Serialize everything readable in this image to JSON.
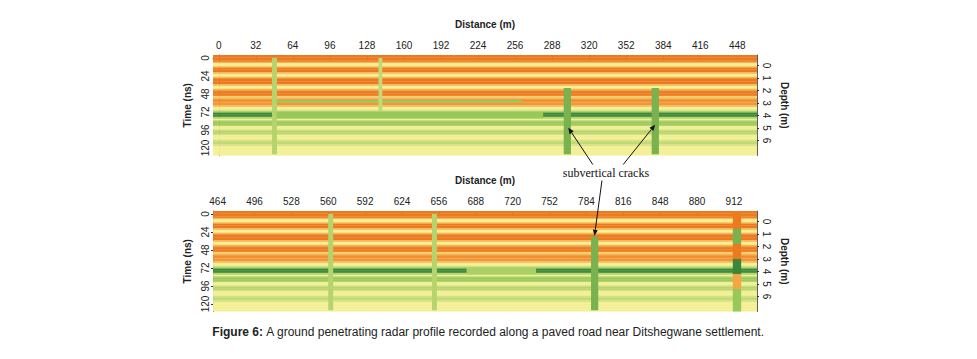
{
  "chart_data": [
    {
      "type": "radargram",
      "xlabel": "Distance (m)",
      "ylabel": "Time (ns)",
      "y2label": "Depth (m)",
      "xlim": [
        -5,
        465
      ],
      "xticks": [
        0,
        32,
        64,
        96,
        128,
        160,
        192,
        224,
        256,
        288,
        320,
        352,
        384,
        416,
        448
      ],
      "ylim": [
        -4,
        130
      ],
      "yticks": [
        0,
        24,
        48,
        72,
        96,
        120
      ],
      "y2lim": [
        -0.84,
        7.2
      ],
      "y2ticks": [
        0,
        1,
        2,
        3,
        4,
        5,
        6
      ],
      "clim": [
        -3,
        3
      ],
      "trace": {
        "time": [
          -4,
          -2,
          0,
          2,
          4,
          6,
          8,
          10,
          12,
          14,
          16,
          18,
          20,
          22,
          24,
          26,
          28,
          30,
          32,
          34,
          36,
          38,
          40,
          42,
          44,
          46,
          48,
          50,
          52,
          54,
          56,
          58,
          60,
          62,
          64,
          66,
          68,
          70,
          72,
          74,
          76,
          78,
          80,
          82,
          84,
          86,
          88,
          90,
          92,
          94,
          96,
          98,
          100,
          102,
          104,
          106,
          108,
          110,
          112,
          114,
          116,
          118,
          120,
          122,
          124,
          126,
          128,
          130
        ],
        "amplitude": [
          3,
          3,
          3,
          3,
          3,
          1,
          0,
          0,
          1,
          3,
          3,
          3,
          1,
          0,
          0,
          1,
          3,
          3,
          3,
          3,
          1,
          0,
          0,
          1,
          2.5,
          3,
          3,
          2.5,
          0.5,
          1,
          2.5,
          2,
          2,
          2,
          1,
          0,
          0,
          -0.5,
          -1.5,
          -3,
          -3,
          -2.5,
          -1,
          0,
          -1,
          -1.5,
          -1.5,
          -1,
          0,
          0,
          -0.5,
          -1,
          -1,
          -0.5,
          0,
          0,
          0,
          -0.5,
          -0.8,
          -0.8,
          -0.5,
          0,
          0,
          0,
          0,
          0,
          0,
          0
        ]
      },
      "anomalies": [
        {
          "x": [
            46,
            50
          ],
          "time": [
            0,
            128
          ],
          "amplitude": -1
        },
        {
          "x": [
            50,
            262
          ],
          "time": [
            56,
            59
          ],
          "amplitude": -1.5
        },
        {
          "x": [
            50,
            280
          ],
          "time": [
            72,
            80
          ],
          "amplitude": -1.5
        },
        {
          "x": [
            138,
            141
          ],
          "time": [
            0,
            70
          ],
          "amplitude": -0.8
        },
        {
          "x": [
            298,
            304
          ],
          "time": [
            40,
            128
          ],
          "amplitude": -2
        },
        {
          "x": [
            374,
            380
          ],
          "time": [
            40,
            128
          ],
          "amplitude": -2
        }
      ]
    },
    {
      "type": "radargram",
      "xlabel": "Distance (m)",
      "ylabel": "Time (ns)",
      "y2label": "Depth (m)",
      "xlim": [
        460,
        932
      ],
      "xticks": [
        464,
        496,
        528,
        560,
        592,
        624,
        656,
        688,
        720,
        752,
        784,
        816,
        848,
        880,
        912
      ],
      "ylim": [
        -4,
        130
      ],
      "yticks": [
        0,
        24,
        48,
        72,
        96,
        120
      ],
      "y2lim": [
        -0.84,
        7.2
      ],
      "y2ticks": [
        0,
        1,
        2,
        3,
        4,
        5,
        6
      ],
      "clim": [
        -3,
        3
      ],
      "trace": {
        "time": [
          -4,
          -2,
          0,
          2,
          4,
          6,
          8,
          10,
          12,
          14,
          16,
          18,
          20,
          22,
          24,
          26,
          28,
          30,
          32,
          34,
          36,
          38,
          40,
          42,
          44,
          46,
          48,
          50,
          52,
          54,
          56,
          58,
          60,
          62,
          64,
          66,
          68,
          70,
          72,
          74,
          76,
          78,
          80,
          82,
          84,
          86,
          88,
          90,
          92,
          94,
          96,
          98,
          100,
          102,
          104,
          106,
          108,
          110,
          112,
          114,
          116,
          118,
          120,
          122,
          124,
          126,
          128,
          130
        ],
        "amplitude": [
          3,
          3,
          3,
          3,
          3,
          1,
          0,
          0,
          1,
          3,
          3,
          3,
          1,
          0,
          0,
          1,
          3,
          3,
          3,
          3,
          1,
          0,
          0,
          1,
          2.5,
          3,
          3,
          2.5,
          0.5,
          1,
          2.5,
          2,
          2,
          2,
          1,
          0,
          0,
          -0.5,
          -1.5,
          -3,
          -3,
          -2.5,
          -1,
          0,
          -1,
          -1.5,
          -1.5,
          -1,
          0,
          0,
          -0.5,
          -1,
          -1,
          -0.5,
          0,
          0,
          0,
          -0.5,
          -0.8,
          -0.8,
          -0.5,
          0,
          0,
          0,
          0,
          0,
          0,
          0
        ]
      },
      "anomalies": [
        {
          "x": [
            560,
            564
          ],
          "time": [
            0,
            128
          ],
          "amplitude": -1
        },
        {
          "x": [
            650,
            654
          ],
          "time": [
            0,
            128
          ],
          "amplitude": -1
        },
        {
          "x": [
            680,
            740
          ],
          "time": [
            72,
            80
          ],
          "amplitude": -1.2
        },
        {
          "x": [
            788,
            794
          ],
          "time": [
            30,
            128
          ],
          "amplitude": -2
        },
        {
          "x": [
            911,
            918
          ],
          "time": [
            -4,
            20
          ],
          "amplitude": 3
        },
        {
          "x": [
            911,
            918
          ],
          "time": [
            20,
            40
          ],
          "amplitude": -2
        },
        {
          "x": [
            911,
            918
          ],
          "time": [
            40,
            60
          ],
          "amplitude": 3
        },
        {
          "x": [
            911,
            918
          ],
          "time": [
            60,
            80
          ],
          "amplitude": -3
        },
        {
          "x": [
            911,
            918
          ],
          "time": [
            80,
            100
          ],
          "amplitude": 1.5
        },
        {
          "x": [
            911,
            918
          ],
          "time": [
            100,
            130
          ],
          "amplitude": -1.5
        }
      ]
    }
  ],
  "annotation": {
    "text": "subvertical cracks",
    "targets": [
      {
        "chart": 0,
        "x": 302,
        "time": 93
      },
      {
        "chart": 0,
        "x": 377,
        "time": 89
      },
      {
        "chart": 1,
        "x": 791,
        "time": 29
      }
    ]
  },
  "caption": "Figure 6: A ground penetrating radar profile recorded along a paved road near Ditshegwane settlement."
}
